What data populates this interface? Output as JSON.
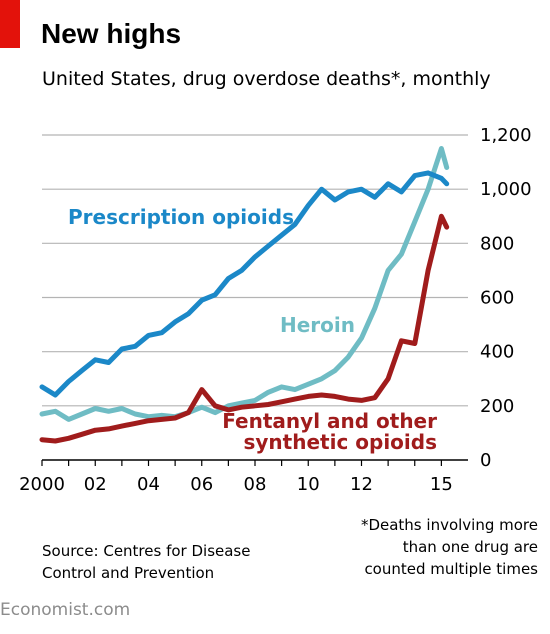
{
  "header": {
    "title": "New highs",
    "subtitle": "United States, drug overdose deaths*, monthly"
  },
  "footer": {
    "footnote_line1": "*Deaths involving more",
    "footnote_line2": "than one drug are",
    "footnote_line3": "counted multiple times",
    "source_line1": "Source: Centres for Disease",
    "source_line2": "Control and Prevention",
    "brand": "Economist.com"
  },
  "colors": {
    "accent_red": "#e3120b",
    "prescription": "#1b88c8",
    "heroin": "#6fbcc4",
    "fentanyl": "#a01c1c",
    "grid": "#b4b4b4"
  },
  "chart_data": {
    "type": "line",
    "xlim": [
      2000,
      2016
    ],
    "ylim": [
      0,
      1200
    ],
    "y_ticks": [
      0,
      200,
      400,
      600,
      800,
      "1,000",
      "1,200"
    ],
    "y_tick_values": [
      0,
      200,
      400,
      600,
      800,
      1000,
      1200
    ],
    "x_tick_values": [
      2000,
      2002,
      2004,
      2006,
      2008,
      2010,
      2012,
      2015
    ],
    "x_ticks": [
      "2000",
      "02",
      "04",
      "06",
      "08",
      "10",
      "12",
      "15"
    ],
    "grid": true,
    "y_axis_side": "right",
    "series": [
      {
        "name": "Prescription opioids",
        "label_line1": "Prescription opioids",
        "color": "#1b88c8",
        "x": [
          2000,
          2000.5,
          2001,
          2001.5,
          2002,
          2002.5,
          2003,
          2003.5,
          2004,
          2004.5,
          2005,
          2005.5,
          2006,
          2006.5,
          2007,
          2007.5,
          2008,
          2008.5,
          2009,
          2009.5,
          2010,
          2010.5,
          2011,
          2011.5,
          2012,
          2012.5,
          2013,
          2013.5,
          2014,
          2014.5,
          2015,
          2015.2
        ],
        "values": [
          270,
          240,
          290,
          330,
          370,
          360,
          410,
          420,
          460,
          470,
          510,
          540,
          590,
          610,
          670,
          700,
          750,
          790,
          830,
          870,
          940,
          1000,
          960,
          990,
          1000,
          970,
          1020,
          990,
          1050,
          1060,
          1040,
          1020
        ]
      },
      {
        "name": "Heroin",
        "label_line1": "Heroin",
        "color": "#6fbcc4",
        "x": [
          2000,
          2000.5,
          2001,
          2001.5,
          2002,
          2002.5,
          2003,
          2003.5,
          2004,
          2004.5,
          2005,
          2005.5,
          2006,
          2006.5,
          2007,
          2007.5,
          2008,
          2008.5,
          2009,
          2009.5,
          2010,
          2010.5,
          2011,
          2011.5,
          2012,
          2012.5,
          2013,
          2013.5,
          2014,
          2014.5,
          2015,
          2015.2
        ],
        "values": [
          170,
          180,
          150,
          170,
          190,
          180,
          190,
          170,
          160,
          165,
          160,
          175,
          195,
          175,
          200,
          210,
          220,
          250,
          270,
          260,
          280,
          300,
          330,
          380,
          450,
          560,
          700,
          760,
          880,
          1000,
          1150,
          1080
        ]
      },
      {
        "name": "Fentanyl and other synthetic opioids",
        "label_line1": "Fentanyl and other",
        "label_line2": "synthetic opioids",
        "color": "#a01c1c",
        "x": [
          2000,
          2000.5,
          2001,
          2001.5,
          2002,
          2002.5,
          2003,
          2003.5,
          2004,
          2004.5,
          2005,
          2005.5,
          2006,
          2006.5,
          2007,
          2007.5,
          2008,
          2008.5,
          2009,
          2009.5,
          2010,
          2010.5,
          2011,
          2011.5,
          2012,
          2012.5,
          2013,
          2013.5,
          2014,
          2014.5,
          2015,
          2015.2
        ],
        "values": [
          75,
          70,
          80,
          95,
          110,
          115,
          125,
          135,
          145,
          150,
          155,
          175,
          260,
          200,
          185,
          195,
          200,
          205,
          215,
          225,
          235,
          240,
          235,
          225,
          220,
          230,
          300,
          440,
          430,
          700,
          900,
          860
        ]
      }
    ]
  }
}
